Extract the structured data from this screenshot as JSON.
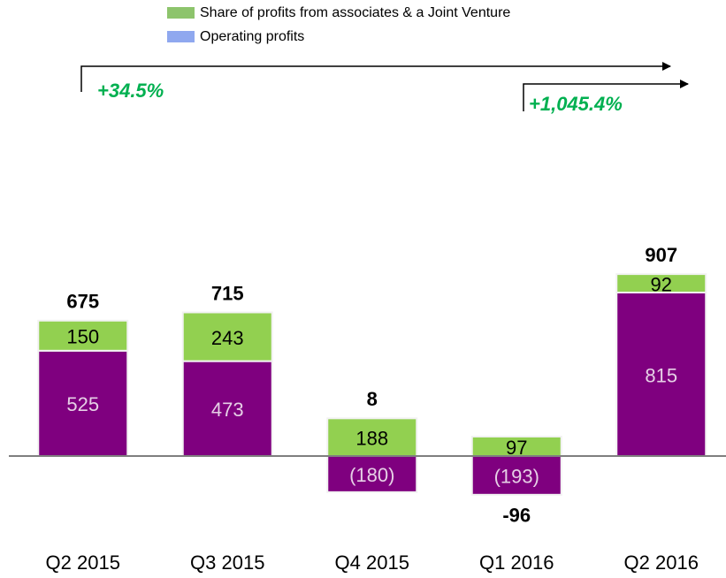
{
  "chart_data": {
    "type": "stacked-bar",
    "categories": [
      "Q2 2015",
      "Q3 2015",
      "Q4 2015",
      "Q1 2016",
      "Q2 2016"
    ],
    "series": [
      {
        "name": "Operating profits",
        "color": "#7f007f",
        "legend_color": "#8fa8ef",
        "label_color": "#e6d0e6",
        "values": [
          525,
          473,
          -180,
          -193,
          815
        ],
        "value_labels": [
          "525",
          "473",
          "(180)",
          "(193)",
          "815"
        ]
      },
      {
        "name": "Share of profits from associates & a Joint Venture",
        "color": "#92d050",
        "legend_color": "#8dc46c",
        "label_color": "#000000",
        "values": [
          150,
          243,
          188,
          97,
          92
        ]
      }
    ],
    "totals": [
      675,
      715,
      8,
      -96,
      907
    ],
    "annotations": [
      "+34.5%",
      "+1,045.4%"
    ]
  }
}
